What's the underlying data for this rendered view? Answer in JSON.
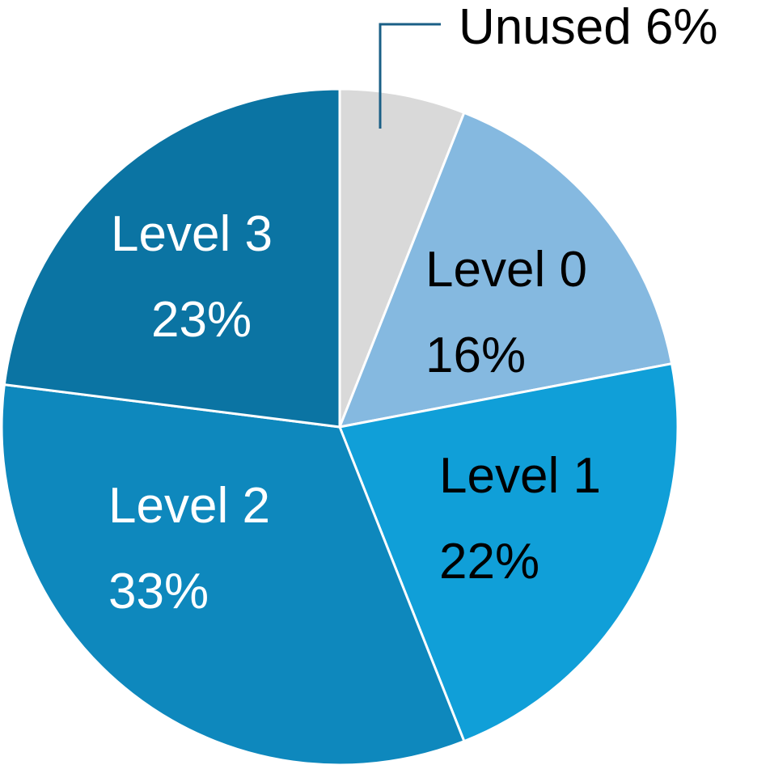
{
  "chart_data": {
    "type": "pie",
    "title": "",
    "slices": [
      {
        "name": "Unused",
        "value": 6,
        "label_line1": "Unused 6%",
        "label_line2": "",
        "color": "#d9d9d9",
        "text_color": "#000000",
        "callout": true
      },
      {
        "name": "Level 0",
        "value": 16,
        "label_line1": "Level 0",
        "label_line2": "16%",
        "color": "#85b9e0",
        "text_color": "#000000",
        "callout": false
      },
      {
        "name": "Level 1",
        "value": 22,
        "label_line1": "Level 1",
        "label_line2": "22%",
        "color": "#109fd8",
        "text_color": "#000000",
        "callout": false
      },
      {
        "name": "Level 2",
        "value": 33,
        "label_line1": "Level 2",
        "label_line2": "33%",
        "color": "#0e88bd",
        "text_color": "#ffffff",
        "callout": false
      },
      {
        "name": "Level 3",
        "value": 23,
        "label_line1": "Level 3",
        "label_line2": "23%",
        "color": "#0b74a3",
        "text_color": "#ffffff",
        "callout": false
      }
    ],
    "start": "12 o'clock",
    "direction": "clockwise",
    "slice_border_color": "#ffffff",
    "callout_line_color": "#1a5f86"
  }
}
